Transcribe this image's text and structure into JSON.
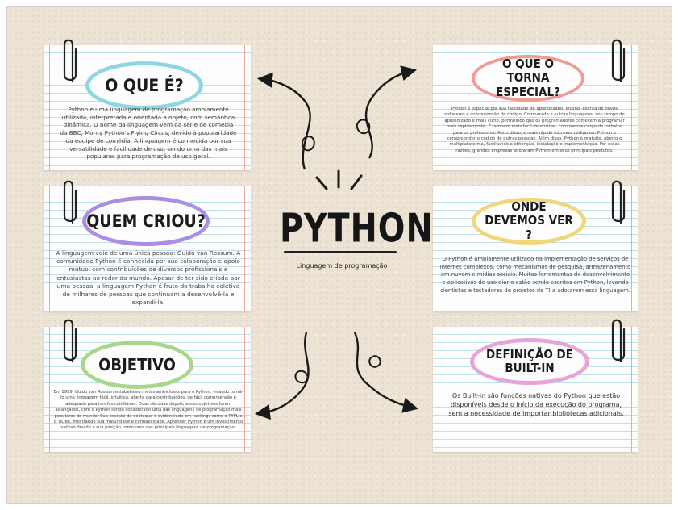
{
  "center": {
    "title": "PYTHON",
    "subtitle": "Linguagem de programação"
  },
  "cards": {
    "what": {
      "title": "O QUE É?",
      "ring_color": "#8fd7e0",
      "text": "Python é uma linguagem de programação amplamente utilizada, interpretada e orientada a objeto, com semântica dinâmica. O nome da linguagem vem da série de comédia da BBC, Monty Python's Flying Circus, devido à popularidade da equipe de comédia. A linguagem é conhecida por sua versatilidade e facilidade de uso, sendo uma das mais populares para programação de uso geral."
    },
    "special": {
      "title": "O QUE O TORNA ESPECIAL?",
      "ring_color": "#ef9a94",
      "text": "Python é especial por sua facilidade de aprendizado, ensino, escrita de novos softwares e compreensão de código. Comparado a outras linguagens, seu tempo de aprendizado é mais curto, permitindo que os programadores comecem a programar mais rapidamente. É também mais fácil de ensinar, com menos carga de trabalho para os professores. Além disso, é mais rápido escrever código em Python e compreender o código de outras pessoas. Além disso, Python é gratuito, aberto e multiplataforma, facilitando a obtenção, instalação e implementação. Por essas razões, grandes empresas adotaram Python em seus principais produtos."
    },
    "who": {
      "title": "QUEM CRIOU?",
      "ring_color": "#a98ee6",
      "text": "A linguagem veio de uma única pessoa: Guido van Rossum. A comunidade Python é conhecida por sua colaboração e apoio mútuo, com contribuições de diversos profissionais e entusiastas ao redor do mundo. Apesar de ter sido criada por uma pessoa, a linguagem Python é fruto do trabalho coletivo de milhares de pessoas que continuam a desenvolvê-la e expandi-la."
    },
    "where": {
      "title": "ONDE DEVEMOS VER ?",
      "ring_color": "#f0d77a",
      "text": "O Python é amplamente utilizado na implementação de serviços de Internet complexos, como mecanismos de pesquisa, armazenamento em nuvem e mídias sociais. Muitas ferramentas de desenvolvimento e aplicativos de uso diário estão sendo escritos em Python, levando cientistas e testadores de projetos de TI a adotarem essa linguagem."
    },
    "goal": {
      "title": "OBJETIVO",
      "ring_color": "#a7d88a",
      "text": "Em 1999, Guido van Rossum estabeleceu metas ambiciosas para o Python, visando torná-lo uma linguagem fácil, intuitiva, aberta para contribuições, de fácil compreensão e adequada para tarefas cotidianas. Duas décadas depois, esses objetivos foram alcançados, com o Python sendo considerado uma das linguagens de programação mais populares do mundo. Sua posição de destaque é evidenciada em rankings como o PYPL e o TIOBE, mostrando sua maturidade e confiabilidade. Aprender Python é um investimento valioso devido a sua posição como uma das principais linguagens de programação."
    },
    "builtin": {
      "title": "DEFINIÇÃO DE BUILT-IN",
      "ring_color": "#e6a4d8",
      "text": "Os Built-in são funções nativas do Python que estão disponíveis desde o início da execução do programa, sem a necessidade de importar bibliotecas adicionais."
    }
  }
}
